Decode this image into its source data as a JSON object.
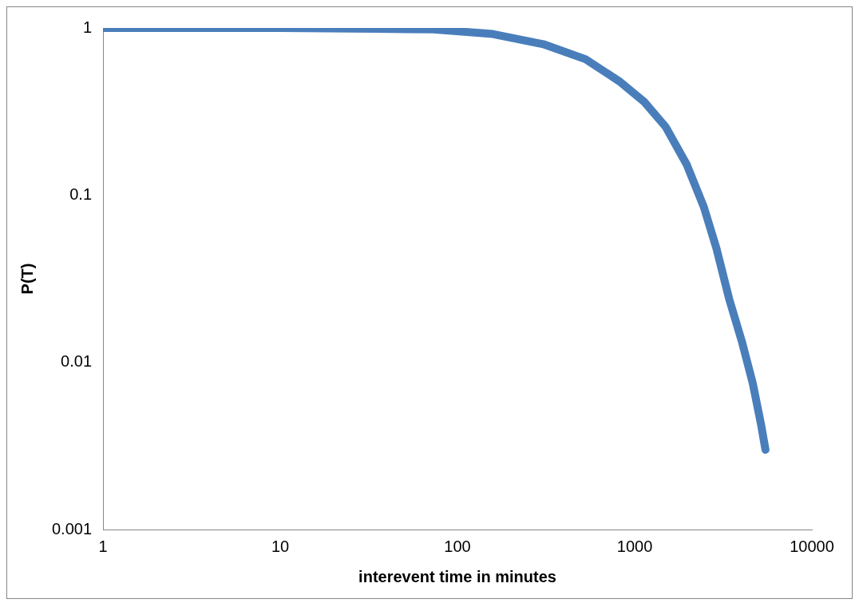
{
  "chart_data": {
    "type": "line",
    "xlabel": "interevent time in minutes",
    "ylabel": "P(T)",
    "log": "xy",
    "grid": false,
    "legend": false,
    "marker": "none",
    "line_style": "solid",
    "xlim": [
      1,
      10000
    ],
    "xticks": [
      1,
      10,
      100,
      1000,
      10000
    ],
    "ylim": [
      0.001,
      1
    ],
    "yticks": [
      0.001,
      0.01,
      0.1,
      1
    ],
    "x": [
      1,
      10,
      34,
      73,
      158,
      305,
      528,
      818,
      1137,
      1496,
      1969,
      2455,
      2893,
      3411,
      4020,
      4636,
      5176,
      5470
    ],
    "series": [
      {
        "color": "#4a7ebb",
        "values": [
          1,
          1,
          0.99,
          0.98,
          0.92,
          0.8,
          0.65,
          0.48,
          0.36,
          0.256,
          0.152,
          0.085,
          0.048,
          0.024,
          0.0134,
          0.0075,
          0.0042,
          0.003
        ]
      }
    ]
  }
}
